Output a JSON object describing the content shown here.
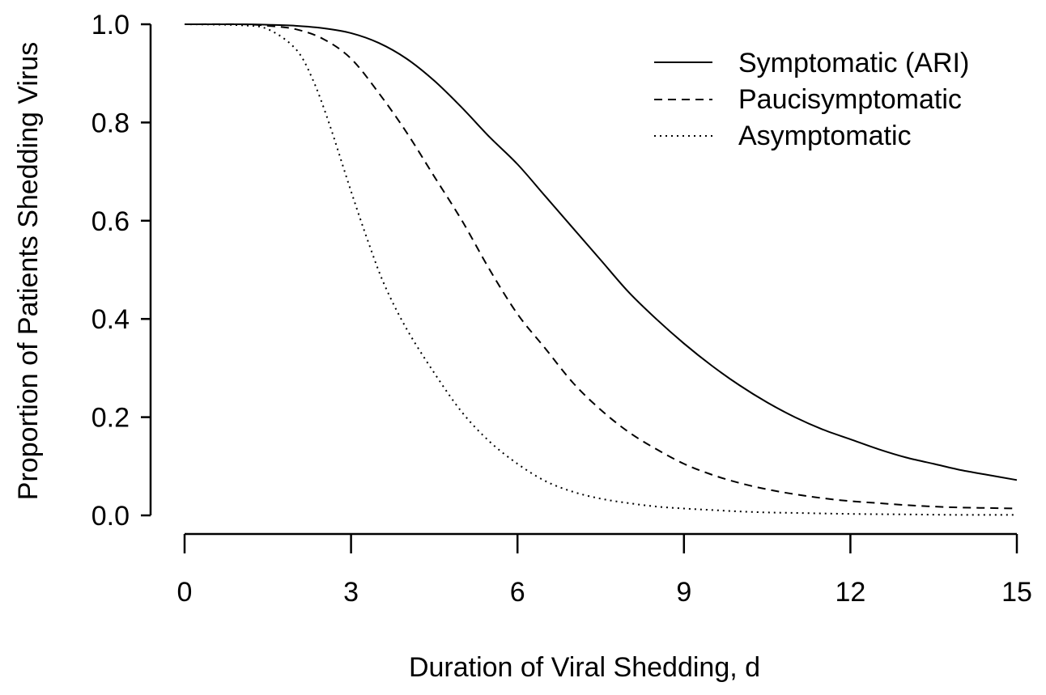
{
  "chart_data": {
    "type": "line",
    "title": "",
    "xlabel": "Duration of Viral Shedding, d",
    "ylabel": "Proportion of Patients Shedding Virus",
    "xlim": [
      0,
      15
    ],
    "ylim": [
      0,
      1
    ],
    "x_ticks": [
      "0",
      "3",
      "6",
      "9",
      "12",
      "15"
    ],
    "y_ticks": [
      "0.0",
      "0.2",
      "0.4",
      "0.6",
      "0.8",
      "1.0"
    ],
    "grid": false,
    "legend_position": "top-right",
    "series": [
      {
        "name": "Symptomatic (ARI)",
        "line_style": "solid",
        "x": [
          0,
          1,
          1.5,
          2,
          2.5,
          3,
          3.5,
          4,
          4.5,
          5,
          5.5,
          6,
          6.5,
          7,
          7.5,
          8,
          8.5,
          9,
          9.5,
          10,
          10.5,
          11,
          11.5,
          12,
          12.5,
          13,
          13.5,
          14,
          14.5,
          15
        ],
        "y": [
          1.0,
          1.0,
          0.999,
          0.997,
          0.992,
          0.982,
          0.962,
          0.93,
          0.885,
          0.83,
          0.77,
          0.715,
          0.65,
          0.585,
          0.52,
          0.455,
          0.4,
          0.35,
          0.305,
          0.265,
          0.23,
          0.2,
          0.175,
          0.155,
          0.135,
          0.118,
          0.105,
          0.092,
          0.082,
          0.072
        ]
      },
      {
        "name": "Paucisymptomatic",
        "line_style": "dashed",
        "x": [
          0,
          1,
          1.5,
          2,
          2.5,
          3,
          3.5,
          4,
          4.5,
          5,
          5.5,
          6,
          6.5,
          7,
          7.5,
          8,
          8.5,
          9,
          9.5,
          10,
          10.5,
          11,
          11.5,
          12,
          12.5,
          13,
          13.5,
          14,
          14.5,
          15
        ],
        "y": [
          1.0,
          1.0,
          0.997,
          0.99,
          0.97,
          0.93,
          0.86,
          0.78,
          0.69,
          0.6,
          0.5,
          0.41,
          0.34,
          0.27,
          0.215,
          0.17,
          0.135,
          0.105,
          0.083,
          0.066,
          0.053,
          0.043,
          0.035,
          0.029,
          0.025,
          0.021,
          0.018,
          0.016,
          0.015,
          0.014
        ]
      },
      {
        "name": "Asymptomatic",
        "line_style": "dotted",
        "x": [
          0,
          1,
          1.5,
          2,
          2.3,
          2.6,
          3,
          3.3,
          3.6,
          4,
          4.5,
          5,
          5.5,
          6,
          6.5,
          7,
          7.5,
          8,
          8.5,
          9,
          9.5,
          10,
          10.5,
          11,
          12,
          13,
          14,
          15
        ],
        "y": [
          1.0,
          0.998,
          0.99,
          0.95,
          0.89,
          0.8,
          0.66,
          0.56,
          0.47,
          0.38,
          0.29,
          0.21,
          0.15,
          0.105,
          0.07,
          0.048,
          0.034,
          0.025,
          0.018,
          0.014,
          0.011,
          0.008,
          0.006,
          0.005,
          0.003,
          0.002,
          0.001,
          0.001
        ]
      }
    ]
  }
}
